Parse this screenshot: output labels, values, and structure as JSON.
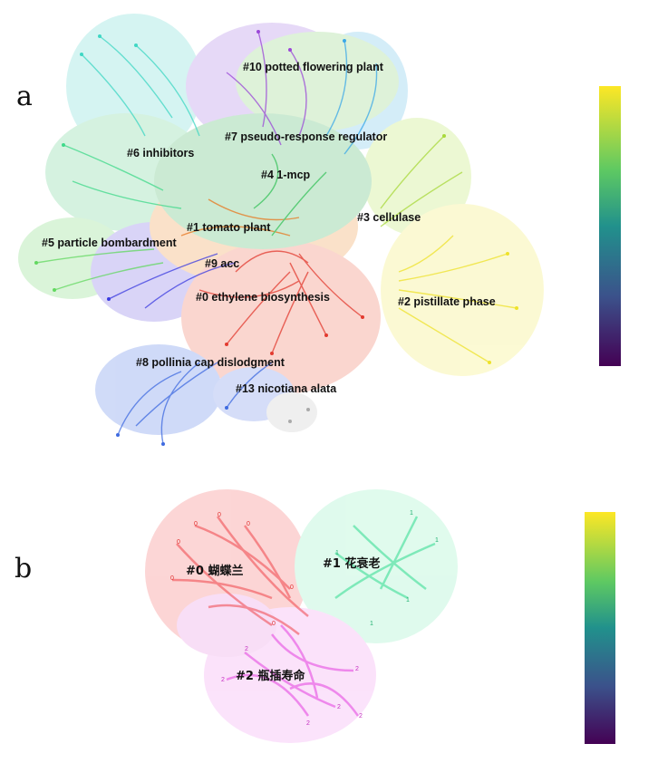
{
  "panels": [
    {
      "letter": "a",
      "clusters": [
        {
          "label": "#10 potted flowering plant",
          "color": "#a24fd8"
        },
        {
          "label": "#7 pseudo-response regulator",
          "color": "#2fb0c0"
        },
        {
          "label": "#6 inhibitors",
          "color": "#3ccf8a"
        },
        {
          "label": "#4 1-mcp",
          "color": "#36c25a"
        },
        {
          "label": "#3 cellulase",
          "color": "#a6dc3c"
        },
        {
          "label": "#1 tomato plant",
          "color": "#e8761d"
        },
        {
          "label": "#5 particle bombardment",
          "color": "#5fd36b"
        },
        {
          "label": "#9 acc",
          "color": "#3b3be0"
        },
        {
          "label": "#0 ethylene biosynthesis",
          "color": "#e23a2f"
        },
        {
          "label": "#2 pistillate phase",
          "color": "#f2ea2a"
        },
        {
          "label": "#8 pollinia cap dislodgment",
          "color": "#3f6be0"
        },
        {
          "label": "#13 nicotiana alata",
          "color": "#aaaaaa"
        }
      ]
    },
    {
      "letter": "b",
      "clusters": [
        {
          "label": "#0 蝴蝶兰",
          "color": "#f0444a",
          "node_label": "0"
        },
        {
          "label": "#1 花衰老",
          "color": "#2fdc90",
          "node_label": "1"
        },
        {
          "label": "#2 瓶插寿命",
          "color": "#e43fe0",
          "node_label": "2"
        }
      ]
    }
  ],
  "colorbar": {
    "gradient": [
      "#fde725",
      "#5ec962",
      "#21918c",
      "#3b528b",
      "#440154"
    ]
  }
}
